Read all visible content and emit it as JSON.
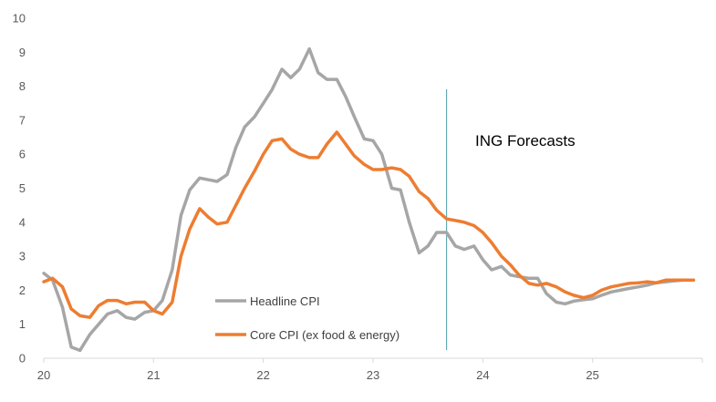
{
  "chart_data": {
    "type": "line",
    "title": "",
    "xlabel": "",
    "ylabel": "",
    "xlim": [
      20,
      26
    ],
    "ylim": [
      0,
      10
    ],
    "yticks": [
      0,
      1,
      2,
      3,
      4,
      5,
      6,
      7,
      8,
      9,
      10
    ],
    "xticks": [
      "20",
      "21",
      "22",
      "23",
      "24",
      "25"
    ],
    "grid": false,
    "legend_position": "bottom-left (inside)",
    "annotation": {
      "text": "ING Forecasts",
      "x": 23.67,
      "color": "#4A9DA8"
    },
    "series": [
      {
        "name": "Headline CPI",
        "color": "#A6A6A6",
        "x": [
          20.0,
          20.08,
          20.17,
          20.25,
          20.33,
          20.42,
          20.5,
          20.58,
          20.67,
          20.75,
          20.83,
          20.92,
          21.0,
          21.08,
          21.17,
          21.25,
          21.33,
          21.42,
          21.5,
          21.58,
          21.67,
          21.75,
          21.83,
          21.92,
          22.0,
          22.08,
          22.17,
          22.25,
          22.33,
          22.42,
          22.5,
          22.58,
          22.67,
          22.75,
          22.83,
          22.92,
          23.0,
          23.08,
          23.17,
          23.25,
          23.33,
          23.42,
          23.5,
          23.58,
          23.67,
          23.75,
          23.83,
          23.92,
          24.0,
          24.08,
          24.17,
          24.25,
          24.33,
          24.42,
          24.5,
          24.58,
          24.67,
          24.75,
          24.83,
          24.92,
          25.0,
          25.08,
          25.17,
          25.25,
          25.33,
          25.42,
          25.5,
          25.58,
          25.67,
          25.75,
          25.83,
          25.92
        ],
        "values": [
          2.5,
          2.3,
          1.5,
          0.33,
          0.23,
          0.7,
          1.0,
          1.3,
          1.4,
          1.2,
          1.15,
          1.35,
          1.4,
          1.7,
          2.6,
          4.2,
          4.95,
          5.3,
          5.25,
          5.2,
          5.4,
          6.2,
          6.8,
          7.1,
          7.5,
          7.9,
          8.5,
          8.25,
          8.5,
          9.1,
          8.4,
          8.2,
          8.2,
          7.7,
          7.1,
          6.45,
          6.4,
          6.0,
          5.0,
          4.95,
          4.0,
          3.1,
          3.3,
          3.7,
          3.7,
          3.3,
          3.2,
          3.3,
          2.9,
          2.6,
          2.7,
          2.45,
          2.4,
          2.35,
          2.35,
          1.9,
          1.65,
          1.6,
          1.68,
          1.72,
          1.75,
          1.85,
          1.95,
          2.0,
          2.05,
          2.1,
          2.15,
          2.22,
          2.25,
          2.28,
          2.3,
          2.3
        ]
      },
      {
        "name": "Core CPI (ex food & energy)",
        "color": "#ED7D31",
        "x": [
          20.0,
          20.08,
          20.17,
          20.25,
          20.33,
          20.42,
          20.5,
          20.58,
          20.67,
          20.75,
          20.83,
          20.92,
          21.0,
          21.08,
          21.17,
          21.25,
          21.33,
          21.42,
          21.5,
          21.58,
          21.67,
          21.75,
          21.83,
          21.92,
          22.0,
          22.08,
          22.17,
          22.25,
          22.33,
          22.42,
          22.5,
          22.58,
          22.67,
          22.75,
          22.83,
          22.92,
          23.0,
          23.08,
          23.17,
          23.25,
          23.33,
          23.42,
          23.5,
          23.58,
          23.67,
          23.75,
          23.83,
          23.92,
          24.0,
          24.08,
          24.17,
          24.25,
          24.33,
          24.42,
          24.5,
          24.58,
          24.67,
          24.75,
          24.83,
          24.92,
          25.0,
          25.08,
          25.17,
          25.25,
          25.33,
          25.42,
          25.5,
          25.58,
          25.67,
          25.75,
          25.83,
          25.92
        ],
        "values": [
          2.25,
          2.35,
          2.1,
          1.45,
          1.25,
          1.2,
          1.55,
          1.7,
          1.7,
          1.6,
          1.65,
          1.65,
          1.4,
          1.3,
          1.65,
          3.0,
          3.8,
          4.4,
          4.15,
          3.95,
          4.0,
          4.5,
          5.0,
          5.5,
          6.0,
          6.4,
          6.45,
          6.15,
          6.0,
          5.9,
          5.9,
          6.3,
          6.65,
          6.3,
          5.95,
          5.7,
          5.55,
          5.55,
          5.6,
          5.55,
          5.35,
          4.9,
          4.7,
          4.35,
          4.1,
          4.05,
          4.0,
          3.9,
          3.7,
          3.4,
          3.0,
          2.75,
          2.45,
          2.2,
          2.15,
          2.2,
          2.1,
          1.95,
          1.85,
          1.78,
          1.85,
          2.0,
          2.1,
          2.15,
          2.2,
          2.22,
          2.25,
          2.22,
          2.3,
          2.3,
          2.3,
          2.3
        ]
      }
    ]
  }
}
